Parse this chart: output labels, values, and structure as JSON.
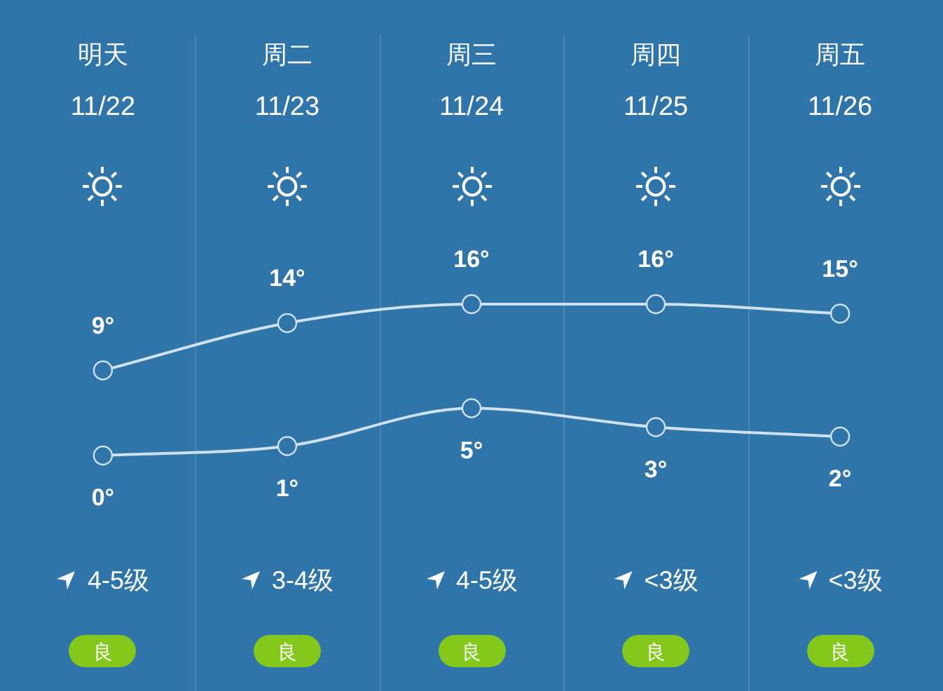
{
  "chart_data": {
    "type": "line",
    "categories": [
      "明天\n11/22",
      "周二\n11/23",
      "周三\n11/24",
      "周四\n11/25",
      "周五\n11/26"
    ],
    "series": [
      {
        "color": "#cfe0ee",
        "values": [
          9,
          14,
          16,
          16,
          15
        ],
        "value_labels": [
          "9°",
          "14°",
          "16°",
          "16°",
          "15°"
        ]
      },
      {
        "color": "#cfe0ee",
        "values": [
          0,
          1,
          5,
          3,
          2
        ],
        "value_labels": [
          "0°",
          "1°",
          "5°",
          "3°",
          "2°"
        ]
      }
    ],
    "marker": "circle",
    "grid": "x",
    "legend": false,
    "annotations": [
      "4-5级",
      "良",
      "3-4级",
      "良",
      "4-5级",
      "良",
      "<3级",
      "良",
      "<3级",
      "良"
    ]
  }
}
